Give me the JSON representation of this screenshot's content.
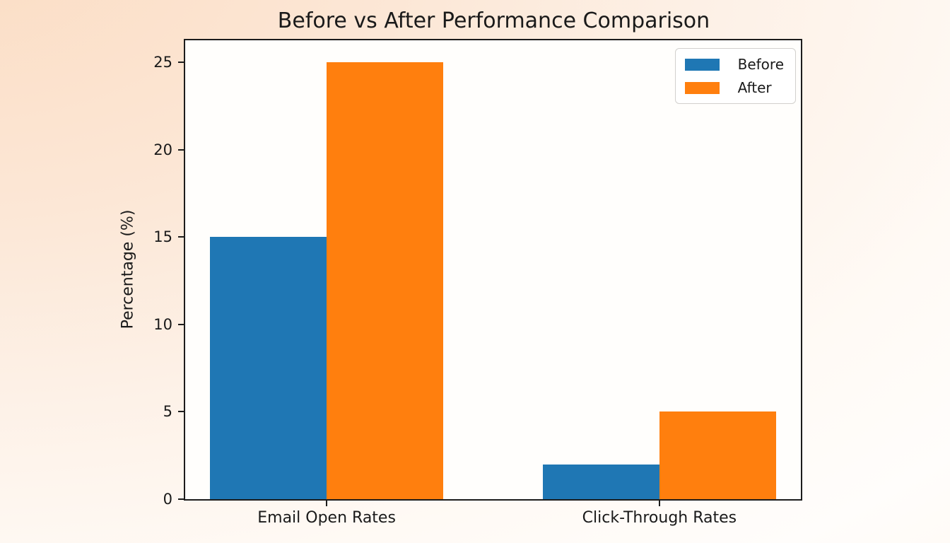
{
  "chart_data": {
    "type": "bar",
    "title": "Before vs After Performance Comparison",
    "categories": [
      "Email Open Rates",
      "Click-Through Rates"
    ],
    "series": [
      {
        "name": "Before",
        "color": "#1f77b4",
        "values": [
          15,
          2
        ]
      },
      {
        "name": "After",
        "color": "#ff7f0e",
        "values": [
          25,
          5
        ]
      }
    ],
    "xlabel": "",
    "ylabel": "Percentage (%)",
    "yticks": [
      0,
      5,
      10,
      15,
      20,
      25
    ],
    "ylim": [
      0,
      26.25
    ],
    "xlim": [
      -0.425,
      1.425
    ],
    "bar_width": 0.35,
    "grid": false,
    "legend_position": "upper right",
    "legend_labels": [
      "Before",
      "After"
    ]
  },
  "colors": {
    "before": "#1f77b4",
    "after": "#ff7f0e",
    "spine": "#1c1c1c",
    "plot_background": "#fffefc",
    "page_background_peach": "#fbddc4"
  }
}
